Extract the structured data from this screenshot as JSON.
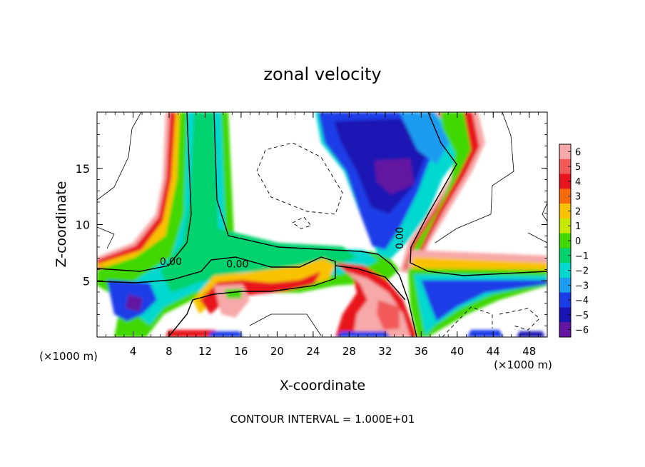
{
  "chart_data": {
    "type": "heatmap",
    "title": "zonal velocity",
    "xlabel": "X-coordinate",
    "ylabel": "Z-coordinate",
    "x_unit_label": "(×1000 m)",
    "x_unit_label_right": "(×1000 m)",
    "xlim": [
      0,
      50
    ],
    "ylim": [
      0,
      20
    ],
    "x_ticks": [
      4,
      8,
      12,
      16,
      20,
      24,
      28,
      32,
      36,
      40,
      44,
      48
    ],
    "y_ticks": [
      5,
      10,
      15
    ],
    "colorbar": {
      "levels": [
        6,
        5,
        4,
        3,
        2,
        1,
        0,
        -1,
        -2,
        -3,
        -4,
        -5,
        -6
      ],
      "labels": [
        "6",
        "5",
        "4",
        "3",
        "2",
        "1",
        "0",
        "−1",
        "−2",
        "−3",
        "−4",
        "−5",
        "−6"
      ],
      "colors": [
        "#f7a8a8",
        "#f25a5a",
        "#e8141e",
        "#f76a0a",
        "#f9c200",
        "#c8e800",
        "#40d800",
        "#00d26e",
        "#00d8d0",
        "#1a9cf0",
        "#1a3ce8",
        "#1a14b4",
        "#6414a0"
      ]
    },
    "contour_labels": [
      {
        "text": "0.00",
        "x": 8.2,
        "y": 6.4
      },
      {
        "text": "0.00",
        "x": 15.6,
        "y": 6.2
      },
      {
        "text": "0.00",
        "x": 34.0,
        "y": 8.8
      }
    ],
    "footer": "CONTOUR INTERVAL = 1.000E+01"
  }
}
